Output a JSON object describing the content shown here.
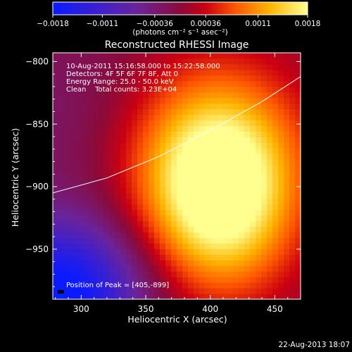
{
  "chart_data": {
    "type": "heatmap",
    "title": "Reconstructed RHESSI Image",
    "xlabel": "Heliocentric X (arcsec)",
    "ylabel": "Heliocentric Y (arcsec)",
    "xlim": [
      278,
      470
    ],
    "ylim": [
      -990,
      -793
    ],
    "x_ticks": [
      300,
      350,
      400,
      450
    ],
    "y_ticks": [
      -800,
      -850,
      -900,
      -950
    ],
    "colorbar": {
      "ticks": [
        "-0.0018",
        "-0.0011",
        "-0.00036",
        "0.00036",
        "0.0011",
        "0.0018"
      ],
      "range": [
        -0.0018,
        0.0018
      ],
      "unit_label": "(photons cm⁻² s⁻¹ asec⁻²)"
    },
    "annotations": [
      "10-Aug-2011 15:16:58.000 to 15:22:58.000",
      "Detectors: 4F 5F 6F 7F 8F, Att 0",
      "Energy Range: 25.0 - 50.0 keV",
      "Clean    Total counts: 3.23E+04"
    ],
    "peak_label": "Position of Peak = [405,-899]",
    "peak": [
      405,
      -899
    ],
    "limb_curve": [
      [
        278,
        -905
      ],
      [
        320,
        -893
      ],
      [
        360,
        -876
      ],
      [
        400,
        -855
      ],
      [
        440,
        -832
      ],
      [
        470,
        -812
      ]
    ],
    "sources": [
      {
        "x": 408,
        "y": -905,
        "amplitude": 0.00195,
        "sx": 38,
        "sy": 52
      },
      {
        "x": 388,
        "y": -870,
        "amplitude": 0.0008,
        "sx": 60,
        "sy": 55
      },
      {
        "x": 283,
        "y": -985,
        "amplitude": -0.0019,
        "sx": 45,
        "sy": 40
      },
      {
        "x": 300,
        "y": -850,
        "amplitude": -0.0004,
        "sx": 60,
        "sy": 60
      }
    ]
  },
  "footer_date": "22-Aug-2013 18:07"
}
